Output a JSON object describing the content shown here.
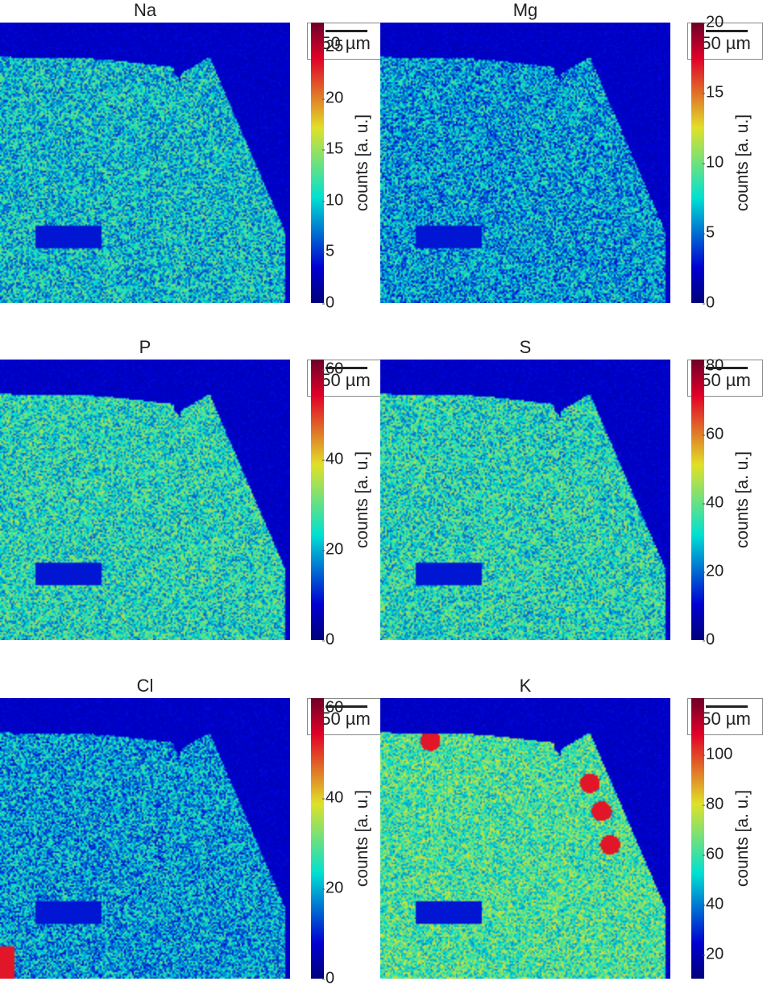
{
  "chart_data": [
    {
      "type": "heatmap",
      "title": "Na",
      "colorbar_label": "counts [a. u.]",
      "clim": [
        0,
        27
      ],
      "ticks": [
        0,
        5,
        10,
        15,
        20,
        25
      ],
      "scale_bar": "50 µm",
      "colormap": "jet"
    },
    {
      "type": "heatmap",
      "title": "Mg",
      "colorbar_label": "counts [a. u.]",
      "clim": [
        0,
        20
      ],
      "ticks": [
        0,
        5,
        10,
        15,
        20
      ],
      "scale_bar": "50 µm",
      "colormap": "jet"
    },
    {
      "type": "heatmap",
      "title": "P",
      "colorbar_label": "counts [a. u.]",
      "clim": [
        0,
        62
      ],
      "ticks": [
        0,
        20,
        40,
        60
      ],
      "scale_bar": "50 µm",
      "colormap": "jet"
    },
    {
      "type": "heatmap",
      "title": "S",
      "colorbar_label": "counts [a. u.]",
      "clim": [
        0,
        82
      ],
      "ticks": [
        0,
        20,
        40,
        60,
        80
      ],
      "scale_bar": "50 µm",
      "colormap": "jet"
    },
    {
      "type": "heatmap",
      "title": "Cl",
      "colorbar_label": "counts [a. u.]",
      "clim": [
        0,
        62
      ],
      "ticks": [
        0,
        20,
        40,
        60
      ],
      "scale_bar": "50 µm",
      "colormap": "jet"
    },
    {
      "type": "heatmap",
      "title": "K",
      "colorbar_label": "counts [a. u.]",
      "clim": [
        3,
        116
      ],
      "ticks": [
        20,
        40,
        60,
        80,
        100
      ],
      "scale_bar": "50 µm",
      "colormap": "jet"
    }
  ],
  "panels": [
    {
      "title": "Na",
      "scale": "50 µm",
      "cbar_label": "counts [a. u.]",
      "ticks": [
        "0",
        "5",
        "10",
        "15",
        "20",
        "25"
      ]
    },
    {
      "title": "Mg",
      "scale": "50 µm",
      "cbar_label": "counts [a. u.]",
      "ticks": [
        "0",
        "5",
        "10",
        "15",
        "20"
      ]
    },
    {
      "title": "P",
      "scale": "50 µm",
      "cbar_label": "counts [a. u.]",
      "ticks": [
        "0",
        "20",
        "40",
        "60"
      ]
    },
    {
      "title": "S",
      "scale": "50 µm",
      "cbar_label": "counts [a. u.]",
      "ticks": [
        "0",
        "20",
        "40",
        "60",
        "80"
      ]
    },
    {
      "title": "Cl",
      "scale": "50 µm",
      "cbar_label": "counts [a. u.]",
      "ticks": [
        "0",
        "20",
        "40",
        "60"
      ]
    },
    {
      "title": "K",
      "scale": "50 µm",
      "cbar_label": "counts [a. u.]",
      "ticks": [
        "20",
        "40",
        "60",
        "80",
        "100"
      ]
    }
  ]
}
